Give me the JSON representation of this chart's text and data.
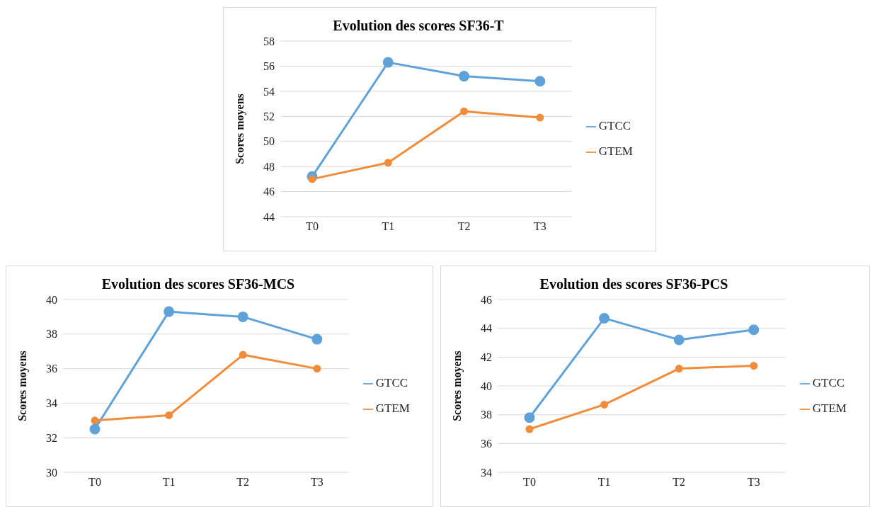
{
  "chart_data": [
    {
      "type": "line",
      "title": "Evolution des scores SF36-T",
      "ylabel": "Scores moyens",
      "categories": [
        "T0",
        "T1",
        "T2",
        "T3"
      ],
      "ylim": [
        44,
        58
      ],
      "yticks": [
        44,
        46,
        48,
        50,
        52,
        54,
        56,
        58
      ],
      "grid": "y",
      "legend": "right",
      "marker": "circle",
      "line_style": "solid",
      "series": [
        {
          "name": "GTCC",
          "color": "#5fa2d9",
          "values": [
            47.2,
            56.3,
            55.2,
            54.8
          ]
        },
        {
          "name": "GTEM",
          "color": "#f08c3a",
          "values": [
            47.0,
            48.3,
            52.4,
            51.9
          ]
        }
      ]
    },
    {
      "type": "line",
      "title": "Evolution des scores SF36-MCS",
      "ylabel": "Scores moyens",
      "categories": [
        "T0",
        "T1",
        "T2",
        "T3"
      ],
      "ylim": [
        30,
        40
      ],
      "yticks": [
        30,
        32,
        34,
        36,
        38,
        40
      ],
      "grid": "y",
      "legend": "right",
      "marker": "circle",
      "line_style": "solid",
      "series": [
        {
          "name": "GTCC",
          "color": "#5fa2d9",
          "values": [
            32.5,
            39.3,
            39.0,
            37.7
          ]
        },
        {
          "name": "GTEM",
          "color": "#f08c3a",
          "values": [
            33.0,
            33.3,
            36.8,
            36.0
          ]
        }
      ]
    },
    {
      "type": "line",
      "title": "Evolution des scores SF36-PCS",
      "ylabel": "Scores moyens",
      "categories": [
        "T0",
        "T1",
        "T2",
        "T3"
      ],
      "ylim": [
        34,
        46
      ],
      "yticks": [
        34,
        36,
        38,
        40,
        42,
        44,
        46
      ],
      "grid": "y",
      "legend": "right",
      "marker": "circle",
      "line_style": "solid",
      "series": [
        {
          "name": "GTCC",
          "color": "#5fa2d9",
          "values": [
            37.8,
            44.7,
            43.2,
            43.9
          ]
        },
        {
          "name": "GTEM",
          "color": "#f08c3a",
          "values": [
            37.0,
            38.7,
            41.2,
            41.4
          ]
        }
      ]
    }
  ]
}
